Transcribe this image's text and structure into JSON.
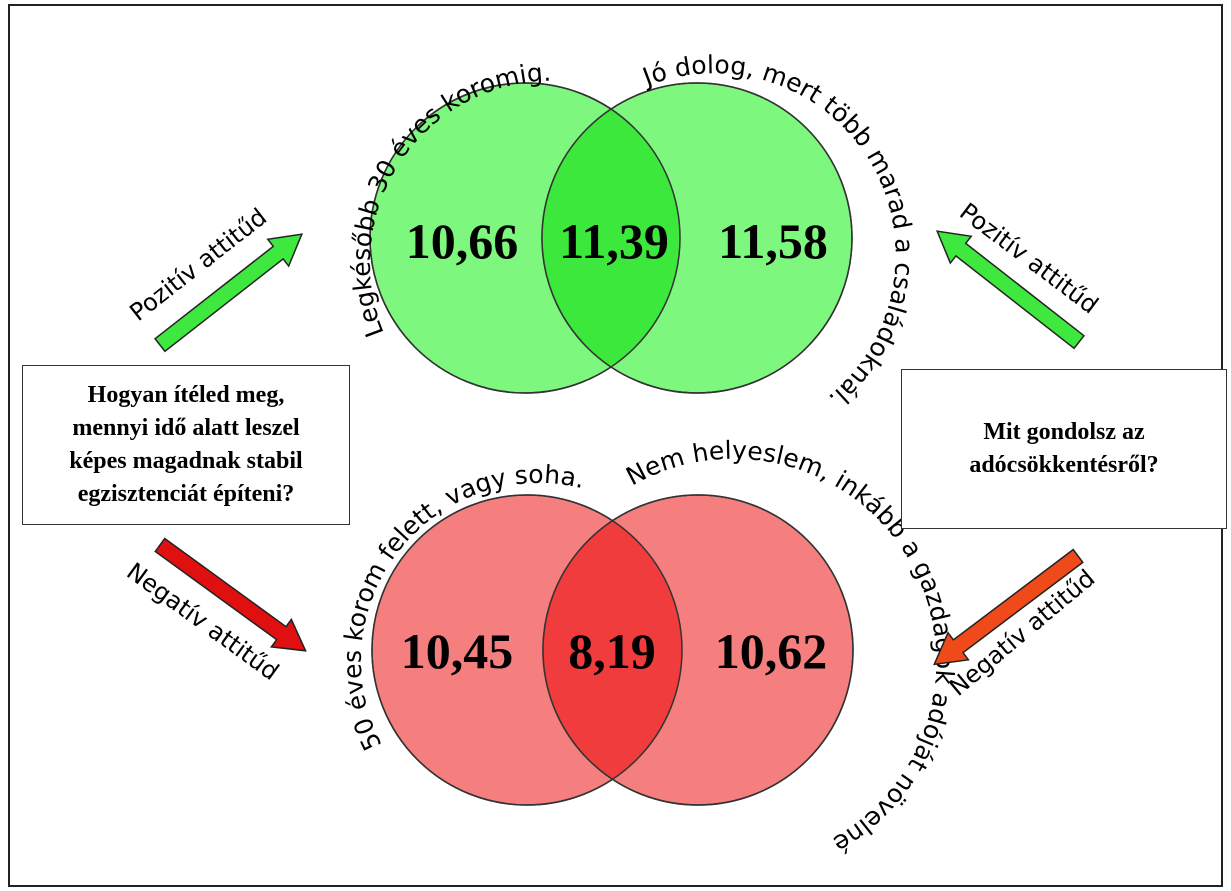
{
  "colors": {
    "positive_circle": "#7ef77e",
    "positive_overlap": "#3de83d",
    "negative_circle": "#f57f7f",
    "negative_overlap": "#f03c3c",
    "arrow_green": "#3fe83f",
    "arrow_red": "#e01010",
    "arrow_orange": "#f04a1a"
  },
  "left_question": {
    "lines": [
      "Hogyan ítéled meg,",
      "mennyi idő alatt leszel",
      "képes magadnak stabil",
      "egzisztenciát építeni?"
    ]
  },
  "right_question": {
    "lines": [
      "Mit gondolsz az",
      "adócsökkentésről?"
    ]
  },
  "arrows": {
    "top_left": "Pozitív attitűd",
    "top_right": "Pozitív attitűd",
    "bottom_left": "Negatív attitűd",
    "bottom_right": "Negatív attitűd"
  },
  "positive_venn": {
    "left_label": "Legkésőbb 30 éves koromig.",
    "right_label": "Jó dolog, mert több marad a családoknál.",
    "left_value": "10,66",
    "overlap_value": "11,39",
    "right_value": "11,58"
  },
  "negative_venn": {
    "left_label": "50 éves korom felett, vagy soha.",
    "right_label": "Nem helyeslem, inkább a gazdagok adóját növelném.",
    "left_value": "10,45",
    "overlap_value": "8,19",
    "right_value": "10,62"
  }
}
